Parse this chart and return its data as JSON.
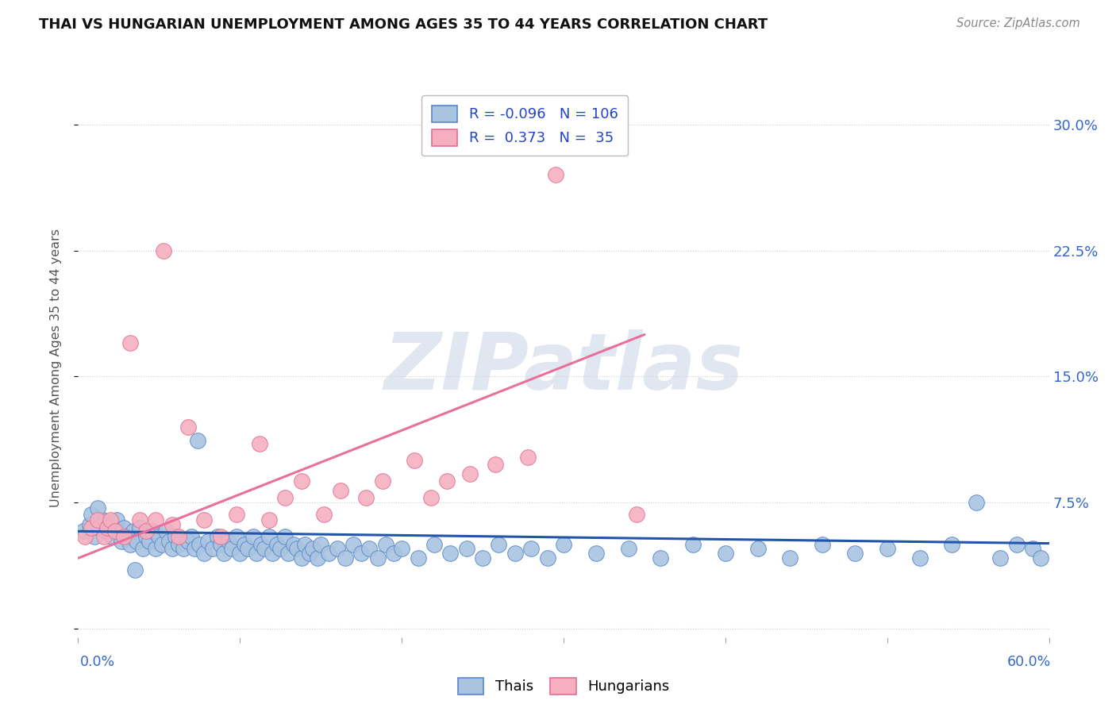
{
  "title": "THAI VS HUNGARIAN UNEMPLOYMENT AMONG AGES 35 TO 44 YEARS CORRELATION CHART",
  "source": "Source: ZipAtlas.com",
  "ylabel": "Unemployment Among Ages 35 to 44 years",
  "yticks": [
    0.0,
    0.075,
    0.15,
    0.225,
    0.3
  ],
  "ytick_labels": [
    "",
    "7.5%",
    "15.0%",
    "22.5%",
    "30.0%"
  ],
  "xlim": [
    0.0,
    0.6
  ],
  "ylim": [
    -0.005,
    0.315
  ],
  "legend_r_thai": "-0.096",
  "legend_n_thai": "106",
  "legend_r_hungarian": "0.373",
  "legend_n_hungarian": "35",
  "thai_color": "#aac4e0",
  "thai_edge_color": "#5588cc",
  "hungarian_color": "#f5afc0",
  "hungarian_edge_color": "#e07090",
  "thai_line_color": "#2255aa",
  "hungarian_line_color": "#e8709a",
  "watermark_color": "#ccd8e8",
  "background_color": "#ffffff",
  "thai_slope": -0.012,
  "thai_intercept": 0.058,
  "hung_slope": 0.38,
  "hung_intercept": 0.042,
  "thai_x": [
    0.003,
    0.007,
    0.01,
    0.013,
    0.015,
    0.017,
    0.019,
    0.021,
    0.022,
    0.024,
    0.025,
    0.027,
    0.028,
    0.03,
    0.032,
    0.034,
    0.036,
    0.038,
    0.04,
    0.042,
    0.044,
    0.046,
    0.048,
    0.05,
    0.052,
    0.054,
    0.056,
    0.058,
    0.06,
    0.062,
    0.065,
    0.068,
    0.07,
    0.072,
    0.075,
    0.078,
    0.08,
    0.083,
    0.086,
    0.088,
    0.09,
    0.093,
    0.095,
    0.098,
    0.1,
    0.103,
    0.105,
    0.108,
    0.11,
    0.113,
    0.115,
    0.118,
    0.12,
    0.123,
    0.125,
    0.128,
    0.13,
    0.133,
    0.135,
    0.138,
    0.14,
    0.143,
    0.145,
    0.148,
    0.15,
    0.155,
    0.16,
    0.165,
    0.17,
    0.175,
    0.18,
    0.185,
    0.19,
    0.195,
    0.2,
    0.21,
    0.22,
    0.23,
    0.24,
    0.25,
    0.26,
    0.27,
    0.28,
    0.29,
    0.3,
    0.32,
    0.34,
    0.36,
    0.38,
    0.4,
    0.42,
    0.44,
    0.46,
    0.48,
    0.5,
    0.52,
    0.54,
    0.555,
    0.57,
    0.58,
    0.59,
    0.595,
    0.008,
    0.012,
    0.035,
    0.074
  ],
  "thai_y": [
    0.058,
    0.062,
    0.055,
    0.06,
    0.065,
    0.058,
    0.062,
    0.055,
    0.06,
    0.065,
    0.058,
    0.052,
    0.06,
    0.055,
    0.05,
    0.058,
    0.052,
    0.06,
    0.048,
    0.055,
    0.052,
    0.058,
    0.048,
    0.055,
    0.05,
    0.058,
    0.052,
    0.048,
    0.055,
    0.05,
    0.048,
    0.052,
    0.055,
    0.048,
    0.05,
    0.045,
    0.052,
    0.048,
    0.055,
    0.05,
    0.045,
    0.052,
    0.048,
    0.055,
    0.045,
    0.05,
    0.048,
    0.055,
    0.045,
    0.05,
    0.048,
    0.055,
    0.045,
    0.05,
    0.048,
    0.055,
    0.045,
    0.05,
    0.048,
    0.042,
    0.05,
    0.045,
    0.048,
    0.042,
    0.05,
    0.045,
    0.048,
    0.042,
    0.05,
    0.045,
    0.048,
    0.042,
    0.05,
    0.045,
    0.048,
    0.042,
    0.05,
    0.045,
    0.048,
    0.042,
    0.05,
    0.045,
    0.048,
    0.042,
    0.05,
    0.045,
    0.048,
    0.042,
    0.05,
    0.045,
    0.048,
    0.042,
    0.05,
    0.045,
    0.048,
    0.042,
    0.05,
    0.075,
    0.042,
    0.05,
    0.048,
    0.042,
    0.068,
    0.072,
    0.035,
    0.112
  ],
  "hung_x": [
    0.004,
    0.008,
    0.012,
    0.016,
    0.018,
    0.02,
    0.023,
    0.028,
    0.032,
    0.038,
    0.042,
    0.048,
    0.053,
    0.058,
    0.062,
    0.068,
    0.078,
    0.088,
    0.098,
    0.112,
    0.118,
    0.128,
    0.138,
    0.152,
    0.162,
    0.178,
    0.188,
    0.208,
    0.218,
    0.228,
    0.242,
    0.258,
    0.278,
    0.295,
    0.345
  ],
  "hung_y": [
    0.055,
    0.06,
    0.065,
    0.055,
    0.06,
    0.065,
    0.058,
    0.055,
    0.17,
    0.065,
    0.058,
    0.065,
    0.225,
    0.062,
    0.055,
    0.12,
    0.065,
    0.055,
    0.068,
    0.11,
    0.065,
    0.078,
    0.088,
    0.068,
    0.082,
    0.078,
    0.088,
    0.1,
    0.078,
    0.088,
    0.092,
    0.098,
    0.102,
    0.27,
    0.068
  ]
}
